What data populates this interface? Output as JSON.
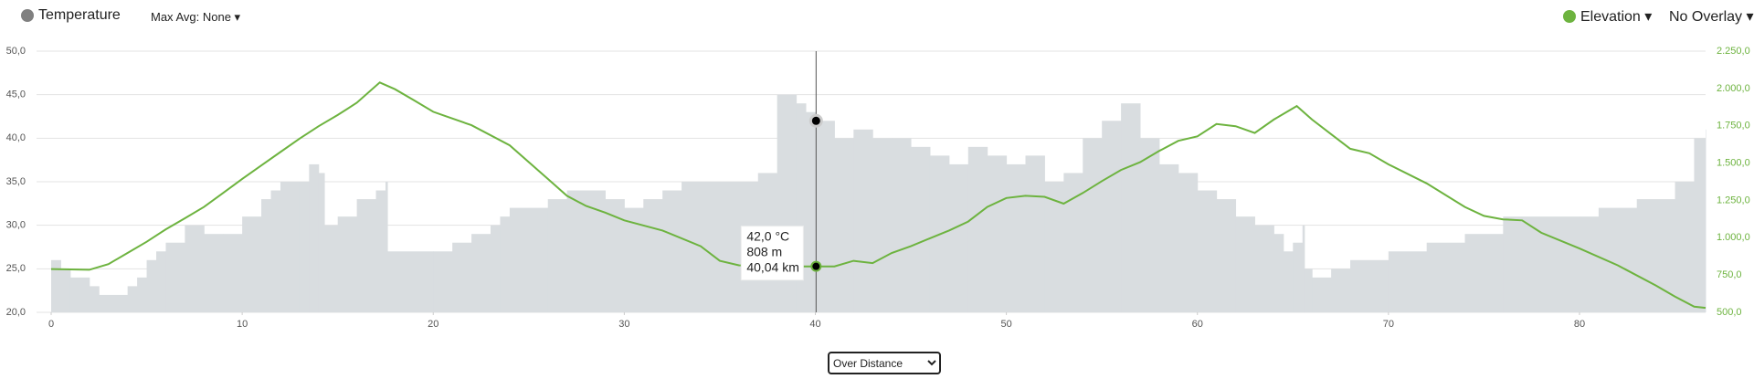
{
  "header": {
    "left_legend": "Temperature",
    "max_avg": "Max Avg: None ▾",
    "right_legend": "Elevation ▾",
    "overlay": "No Overlay ▾"
  },
  "control": {
    "mode": "Over Distance"
  },
  "chart_data": {
    "type": "area+line",
    "xlim": [
      0,
      86.6
    ],
    "xticks": [
      0,
      10,
      20,
      30,
      40,
      50,
      60,
      70,
      80
    ],
    "ylim": [
      20,
      50
    ],
    "yticks": [
      {
        "value": 20,
        "label": "20,0"
      },
      {
        "value": 25,
        "label": "25,0"
      },
      {
        "value": 30,
        "label": "30,0"
      },
      {
        "value": 35,
        "label": "35,0"
      },
      {
        "value": 40,
        "label": "40,0"
      },
      {
        "value": 45,
        "label": "45,0"
      },
      {
        "value": 50,
        "label": "50,0"
      }
    ],
    "y2lim": [
      500,
      2250
    ],
    "y2ticks": [
      {
        "value": 500,
        "label": "500,0"
      },
      {
        "value": 750,
        "label": "750,0"
      },
      {
        "value": 1000,
        "label": "1.000,0"
      },
      {
        "value": 1250,
        "label": "1.250,0"
      },
      {
        "value": 1500,
        "label": "1.500,0"
      },
      {
        "value": 1750,
        "label": "1.750,0"
      },
      {
        "value": 2000,
        "label": "2.000,0"
      },
      {
        "value": 2250,
        "label": "2.250,0"
      }
    ],
    "grid": true,
    "series": [
      {
        "name": "Temperature",
        "style": "step-area",
        "color": "#d9dde0",
        "legend_color": "#808080",
        "x": [
          0,
          0.5,
          1,
          2,
          2.5,
          4,
          4.5,
          5,
          5.5,
          6,
          7,
          8,
          9,
          10,
          11,
          11.5,
          12,
          13,
          13.5,
          14,
          14.3,
          15,
          16,
          17,
          17.5,
          17.6,
          20,
          21,
          22,
          23,
          23.5,
          24,
          26,
          27,
          28,
          29,
          30,
          31,
          32,
          33,
          35,
          37,
          38,
          39,
          39.5,
          40,
          41,
          42,
          43,
          44,
          45,
          46,
          47,
          48,
          49,
          50,
          51,
          52,
          53,
          54,
          55,
          56,
          57,
          58,
          59,
          60,
          61,
          62,
          63,
          64,
          64.5,
          65,
          65.5,
          65.6,
          66,
          67,
          68,
          70,
          72,
          74,
          76,
          80,
          81,
          83,
          85,
          86,
          86.6
        ],
        "values": [
          26,
          25,
          24,
          23,
          22,
          23,
          24,
          26,
          27,
          28,
          30,
          29,
          29,
          31,
          33,
          34,
          35,
          35,
          37,
          36,
          30,
          31,
          33,
          34,
          35,
          27,
          27,
          28,
          29,
          30,
          31,
          32,
          33,
          34,
          34,
          33,
          32,
          33,
          34,
          35,
          35,
          36,
          45,
          44,
          43,
          42,
          40,
          41,
          40,
          40,
          39,
          38,
          37,
          39,
          38,
          37,
          38,
          35,
          36,
          40,
          42,
          44,
          40,
          37,
          36,
          34,
          33,
          31,
          30,
          29,
          27,
          28,
          30,
          25,
          24,
          25,
          26,
          27,
          28,
          29,
          31,
          31,
          32,
          33,
          35,
          40,
          41
        ]
      },
      {
        "name": "Elevation",
        "style": "line",
        "axis": "y2",
        "color": "#6db33f",
        "x": [
          0,
          2,
          3,
          4,
          5,
          6,
          7,
          8,
          9,
          10,
          11,
          12,
          13,
          14,
          15,
          16,
          17.2,
          18,
          19,
          20,
          22,
          24,
          26,
          27,
          28,
          29,
          30,
          32,
          34,
          35,
          36,
          38,
          40,
          41,
          42,
          43,
          44,
          45,
          46,
          47,
          48,
          49,
          50,
          51,
          52,
          53,
          54,
          55,
          56,
          57,
          58,
          59,
          60,
          61,
          62,
          63,
          64,
          65.2,
          66,
          67,
          68,
          69,
          70,
          72,
          74,
          75,
          76,
          77,
          78,
          80,
          82,
          84,
          85,
          86,
          86.6
        ],
        "values": [
          790,
          785,
          823,
          898,
          973,
          1056,
          1130,
          1206,
          1300,
          1394,
          1484,
          1574,
          1664,
          1747,
          1822,
          1904,
          2040,
          1995,
          1920,
          1844,
          1754,
          1619,
          1394,
          1281,
          1213,
          1168,
          1116,
          1048,
          943,
          845,
          815,
          808,
          808,
          808,
          845,
          830,
          898,
          943,
          996,
          1048,
          1108,
          1206,
          1266,
          1281,
          1274,
          1228,
          1300,
          1379,
          1454,
          1506,
          1581,
          1649,
          1679,
          1762,
          1747,
          1702,
          1792,
          1882,
          1792,
          1694,
          1596,
          1566,
          1491,
          1364,
          1206,
          1146,
          1123,
          1116,
          1033,
          928,
          815,
          680,
          605,
          538,
          530
        ]
      }
    ],
    "crosshair": {
      "x": 40.04,
      "x_label": "40,04 km",
      "values": [
        42,
        808
      ],
      "value_labels": [
        "42,0 °C",
        "808 m"
      ]
    }
  }
}
